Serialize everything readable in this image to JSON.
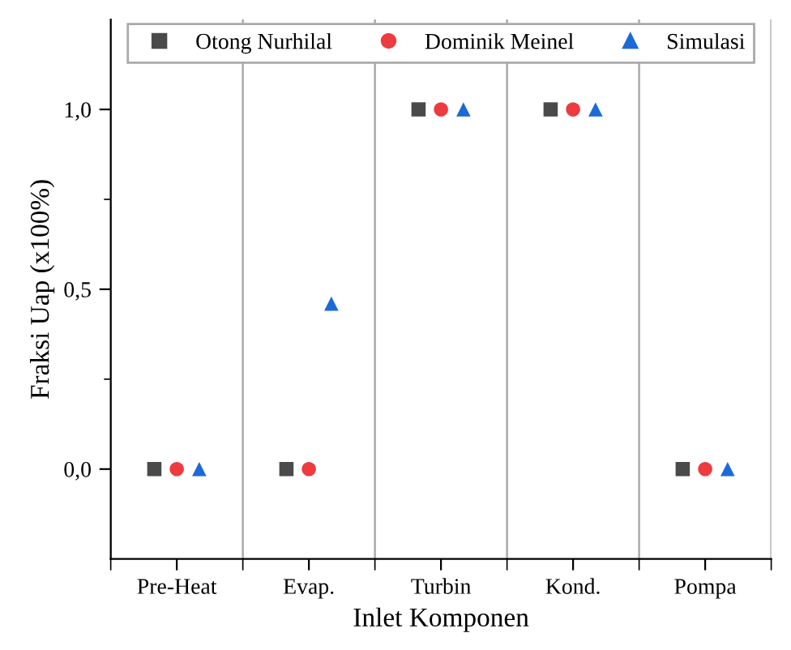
{
  "chart_data": {
    "type": "scatter",
    "xlabel": "Inlet Komponen",
    "ylabel": "Fraksi Uap (x100%)",
    "categories": [
      "Pre-Heat",
      "Evap.",
      "Turbin",
      "Kond.",
      "Pompa"
    ],
    "series": [
      {
        "name": "Otong Nurhilal",
        "color": "#4a4a4a",
        "marker": "square",
        "values": [
          0,
          0,
          1,
          1,
          0
        ]
      },
      {
        "name": "Dominik Meinel",
        "color": "#ee3b3f",
        "marker": "circle",
        "values": [
          0,
          0,
          1,
          1,
          0
        ]
      },
      {
        "name": "Simulasi",
        "color": "#1c6ad8",
        "marker": "triangle",
        "values": [
          0,
          0.46,
          1,
          1,
          0
        ]
      }
    ],
    "ylim": [
      -0.25,
      1.25
    ],
    "yticks": [
      {
        "value": 0,
        "label": "0,0"
      },
      {
        "value": 0.5,
        "label": "0,5"
      },
      {
        "value": 1,
        "label": "1,0"
      }
    ],
    "grid": "x",
    "legend": "top"
  }
}
